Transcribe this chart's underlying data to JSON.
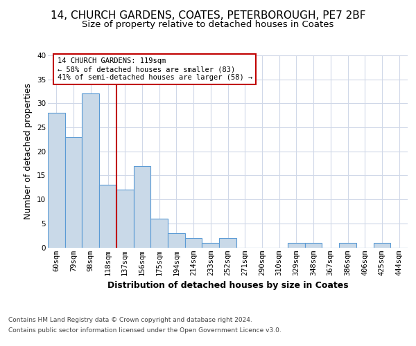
{
  "title": "14, CHURCH GARDENS, COATES, PETERBOROUGH, PE7 2BF",
  "subtitle": "Size of property relative to detached houses in Coates",
  "xlabel": "Distribution of detached houses by size in Coates",
  "ylabel": "Number of detached properties",
  "categories": [
    "60sqm",
    "79sqm",
    "98sqm",
    "118sqm",
    "137sqm",
    "156sqm",
    "175sqm",
    "194sqm",
    "214sqm",
    "233sqm",
    "252sqm",
    "271sqm",
    "290sqm",
    "310sqm",
    "329sqm",
    "348sqm",
    "367sqm",
    "386sqm",
    "406sqm",
    "425sqm",
    "444sqm"
  ],
  "values": [
    28,
    23,
    32,
    13,
    12,
    17,
    6,
    3,
    2,
    1,
    2,
    0,
    0,
    0,
    1,
    1,
    0,
    1,
    0,
    1,
    0
  ],
  "bar_color": "#c9d9e8",
  "bar_edge_color": "#5b9bd5",
  "ref_line_x": 3.5,
  "ref_line_color": "#c00000",
  "annotation_line1": "14 CHURCH GARDENS: 119sqm",
  "annotation_line2": "← 58% of detached houses are smaller (83)",
  "annotation_line3": "41% of semi-detached houses are larger (58) →",
  "annotation_box_edge_color": "#c00000",
  "annotation_box_face_color": "#ffffff",
  "ylim": [
    0,
    40
  ],
  "yticks": [
    0,
    5,
    10,
    15,
    20,
    25,
    30,
    35,
    40
  ],
  "footer_line1": "Contains HM Land Registry data © Crown copyright and database right 2024.",
  "footer_line2": "Contains public sector information licensed under the Open Government Licence v3.0.",
  "title_fontsize": 11,
  "subtitle_fontsize": 9.5,
  "axis_label_fontsize": 9,
  "tick_fontsize": 7.5,
  "annotation_fontsize": 7.5,
  "footer_fontsize": 6.5,
  "bg_color": "#ffffff",
  "grid_color": "#d0d8e8"
}
